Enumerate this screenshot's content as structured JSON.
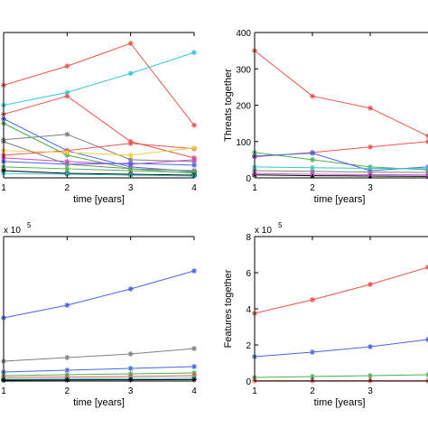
{
  "chart_data": [
    {
      "type": "line",
      "panel": "top-left",
      "xlabel": "time [years]",
      "ylabel": "",
      "x": [
        1,
        2,
        3,
        4
      ],
      "xlim": [
        1,
        4
      ],
      "ylim": [
        0,
        160
      ],
      "xticks": [
        "1",
        "2",
        "3",
        "4"
      ],
      "series": [
        {
          "color": "#e8554f",
          "values": [
            102,
            123,
            148,
            58
          ]
        },
        {
          "color": "#36c7d3",
          "values": [
            80,
            94,
            115,
            138
          ]
        },
        {
          "color": "#e8554f",
          "values": [
            70,
            90,
            40,
            22
          ]
        },
        {
          "color": "#4a63e6",
          "values": [
            65,
            30,
            12,
            7
          ]
        },
        {
          "color": "#808080",
          "values": [
            42,
            48,
            20,
            18
          ]
        },
        {
          "color": "#4caf50",
          "values": [
            60,
            25,
            10,
            5
          ]
        },
        {
          "color": "#e8554f",
          "values": [
            25,
            30,
            38,
            32
          ]
        },
        {
          "color": "#f0d040",
          "values": [
            30,
            28,
            25,
            33
          ]
        },
        {
          "color": "#d049d0",
          "values": [
            22,
            18,
            15,
            20
          ]
        },
        {
          "color": "#4a63e6",
          "values": [
            18,
            15,
            16,
            14
          ]
        },
        {
          "color": "#808080",
          "values": [
            40,
            15,
            10,
            8
          ]
        },
        {
          "color": "#4caf50",
          "values": [
            12,
            10,
            8,
            6
          ]
        },
        {
          "color": "#000000",
          "values": [
            8,
            5,
            4,
            3
          ]
        },
        {
          "color": "#36c7d3",
          "values": [
            5,
            4,
            3,
            2
          ]
        }
      ]
    },
    {
      "type": "line",
      "panel": "top-right",
      "xlabel": "time [years]",
      "ylabel": "Threats together",
      "x": [
        1,
        2,
        3,
        4
      ],
      "xlim": [
        1,
        4
      ],
      "ylim": [
        0,
        400
      ],
      "xticks": [
        "1",
        "2",
        "3"
      ],
      "yticks": [
        "0",
        "100",
        "200",
        "300",
        "400"
      ],
      "series": [
        {
          "color": "#e8554f",
          "values": [
            350,
            225,
            192,
            115
          ]
        },
        {
          "color": "#e8554f",
          "values": [
            58,
            70,
            85,
            100
          ]
        },
        {
          "color": "#4caf50",
          "values": [
            70,
            50,
            30,
            22
          ]
        },
        {
          "color": "#4a63e6",
          "values": [
            60,
            68,
            20,
            30
          ]
        },
        {
          "color": "#36c7d3",
          "values": [
            30,
            28,
            26,
            25
          ]
        },
        {
          "color": "#808080",
          "values": [
            20,
            18,
            16,
            15
          ]
        },
        {
          "color": "#000000",
          "values": [
            8,
            6,
            5,
            4
          ]
        },
        {
          "color": "#d049d0",
          "values": [
            12,
            10,
            9,
            8
          ]
        }
      ]
    },
    {
      "type": "line",
      "panel": "bottom-left",
      "xlabel": "time [years]",
      "ylabel": "",
      "scale_label": "x 10",
      "scale_exponent": "5",
      "x": [
        1,
        2,
        3,
        4
      ],
      "xlim": [
        1,
        4
      ],
      "ylim": [
        0,
        8
      ],
      "xticks": [
        "1",
        "2",
        "3",
        "4"
      ],
      "series": [
        {
          "color": "#4a63e6",
          "values": [
            3.5,
            4.2,
            5.1,
            6.1
          ]
        },
        {
          "color": "#808080",
          "values": [
            1.1,
            1.3,
            1.5,
            1.8
          ]
        },
        {
          "color": "#4a63e6",
          "values": [
            0.5,
            0.6,
            0.7,
            0.8
          ]
        },
        {
          "color": "#4caf50",
          "values": [
            0.3,
            0.35,
            0.4,
            0.45
          ]
        },
        {
          "color": "#e8554f",
          "values": [
            0.2,
            0.22,
            0.25,
            0.3
          ]
        },
        {
          "color": "#36c7d3",
          "values": [
            0.1,
            0.12,
            0.14,
            0.16
          ]
        },
        {
          "color": "#000000",
          "values": [
            0.05,
            0.06,
            0.07,
            0.08
          ]
        }
      ]
    },
    {
      "type": "line",
      "panel": "bottom-right",
      "xlabel": "time [years]",
      "ylabel": "Features together",
      "scale_label": "x 10",
      "scale_exponent": "5",
      "x": [
        1,
        2,
        3,
        4
      ],
      "xlim": [
        1,
        4
      ],
      "ylim": [
        0,
        8
      ],
      "xticks": [
        "1",
        "2",
        "3"
      ],
      "yticks": [
        "0",
        "2",
        "4",
        "6",
        "8"
      ],
      "series": [
        {
          "color": "#e8554f",
          "values": [
            3.75,
            4.5,
            5.35,
            6.3
          ]
        },
        {
          "color": "#4a63e6",
          "values": [
            1.35,
            1.6,
            1.9,
            2.3
          ]
        },
        {
          "color": "#4caf50",
          "values": [
            0.2,
            0.25,
            0.3,
            0.35
          ]
        },
        {
          "color": "#e8554f",
          "values": [
            0.02,
            0.02,
            0.02,
            0.02
          ]
        }
      ]
    }
  ]
}
